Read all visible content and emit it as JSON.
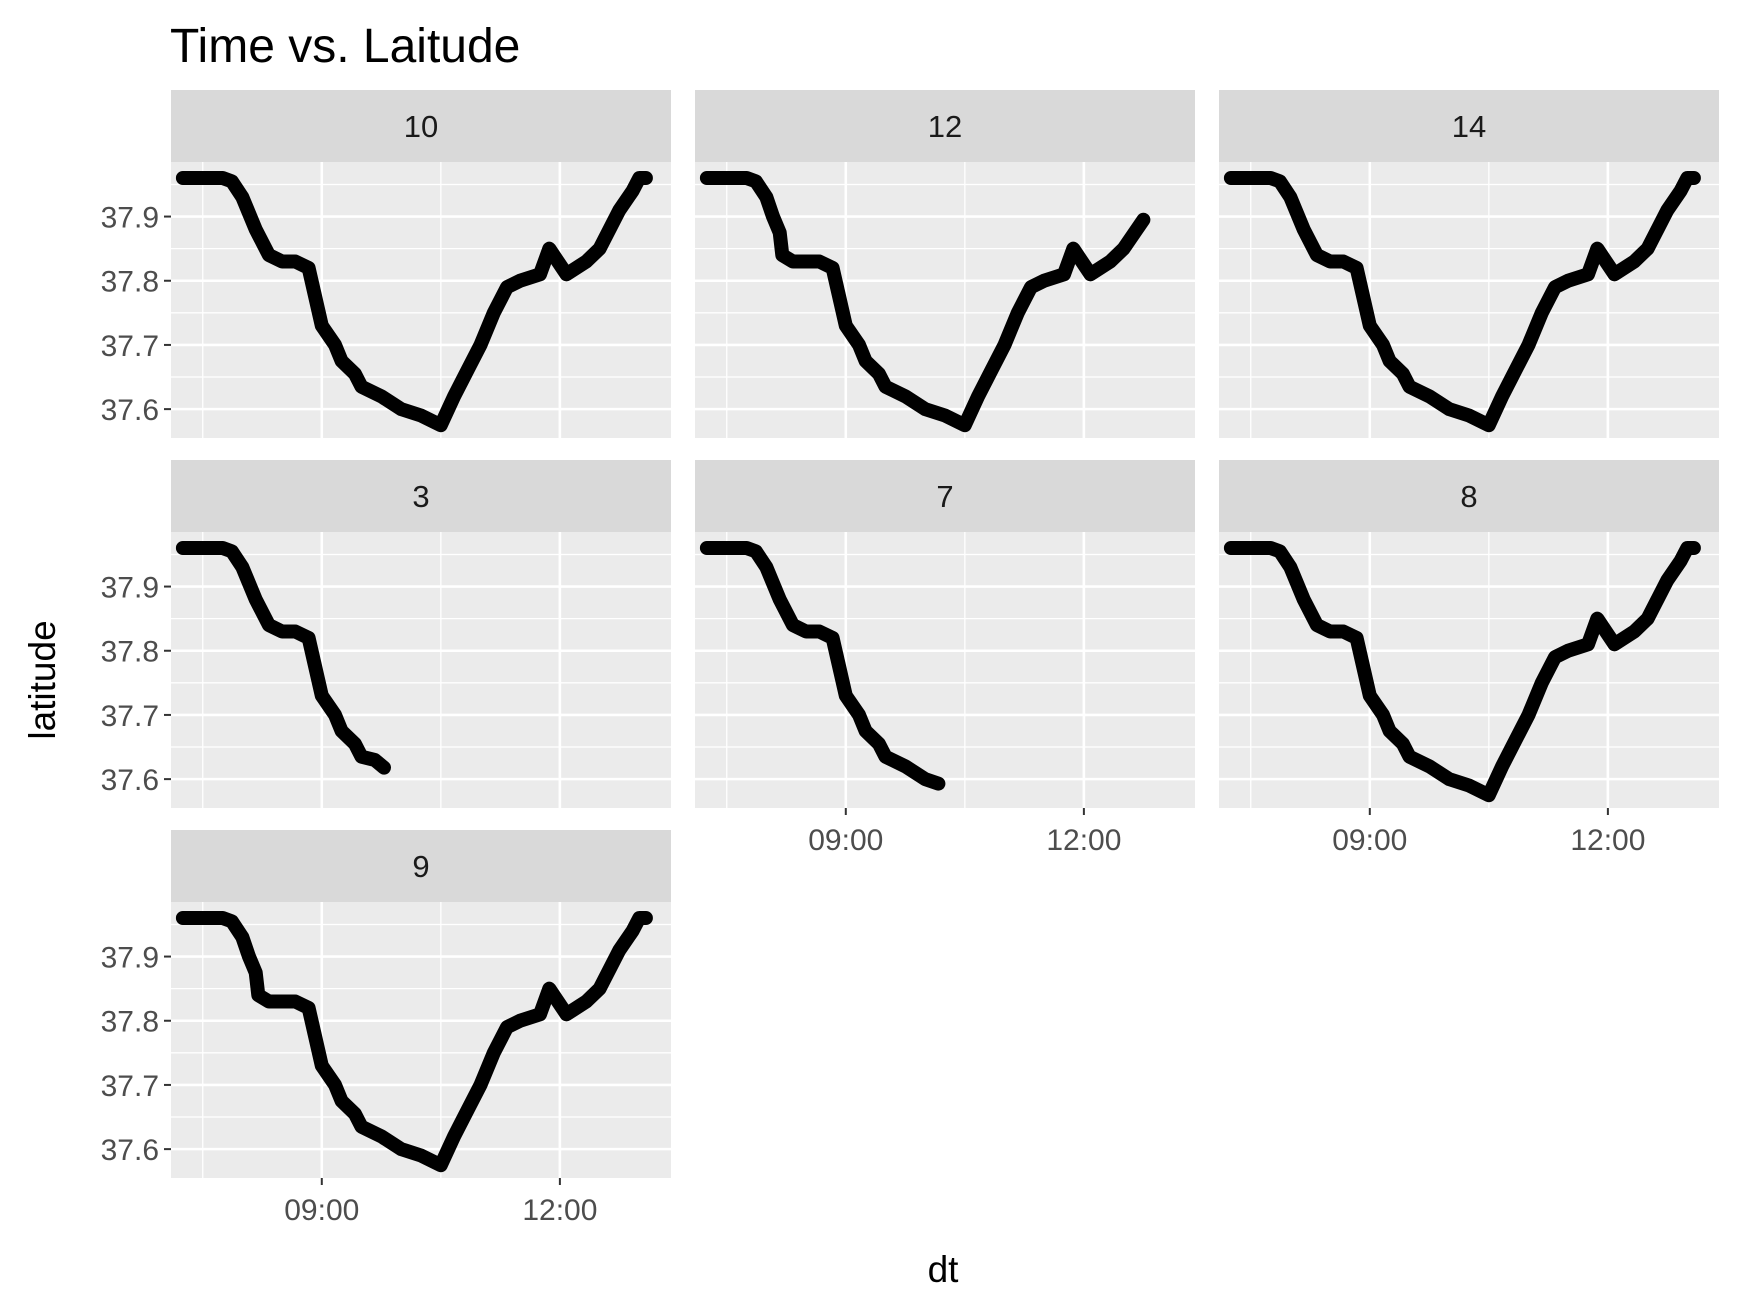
{
  "chart_data": {
    "type": "line",
    "title": "Time vs. Laitude",
    "xlabel": "dt",
    "ylabel": "latitude",
    "x_unit": "time of day (HH:MM)",
    "xlim": [
      "07:06",
      "13:24"
    ],
    "ylim": [
      37.555,
      37.985
    ],
    "x_ticks": [
      "09:00",
      "12:00"
    ],
    "y_ticks": [
      "37.6",
      "37.7",
      "37.8",
      "37.9"
    ],
    "grid": true,
    "line_color": "#000000",
    "panel_background": "#ebebeb",
    "strip_background": "#d9d9d9",
    "grid_color": "#ffffff",
    "facets": [
      {
        "label": "10",
        "series": [
          {
            "x": "07:15",
            "y": 37.96
          },
          {
            "x": "07:30",
            "y": 37.96
          },
          {
            "x": "07:45",
            "y": 37.96
          },
          {
            "x": "07:52",
            "y": 37.955
          },
          {
            "x": "08:00",
            "y": 37.93
          },
          {
            "x": "08:10",
            "y": 37.88
          },
          {
            "x": "08:20",
            "y": 37.84
          },
          {
            "x": "08:30",
            "y": 37.83
          },
          {
            "x": "08:40",
            "y": 37.83
          },
          {
            "x": "08:50",
            "y": 37.82
          },
          {
            "x": "09:00",
            "y": 37.73
          },
          {
            "x": "09:10",
            "y": 37.7
          },
          {
            "x": "09:15",
            "y": 37.675
          },
          {
            "x": "09:25",
            "y": 37.655
          },
          {
            "x": "09:30",
            "y": 37.635
          },
          {
            "x": "09:45",
            "y": 37.62
          },
          {
            "x": "10:00",
            "y": 37.6
          },
          {
            "x": "10:15",
            "y": 37.59
          },
          {
            "x": "10:25",
            "y": 37.58
          },
          {
            "x": "10:30",
            "y": 37.575
          },
          {
            "x": "10:40",
            "y": 37.62
          },
          {
            "x": "10:50",
            "y": 37.66
          },
          {
            "x": "11:00",
            "y": 37.7
          },
          {
            "x": "11:10",
            "y": 37.75
          },
          {
            "x": "11:20",
            "y": 37.79
          },
          {
            "x": "11:30",
            "y": 37.8
          },
          {
            "x": "11:45",
            "y": 37.81
          },
          {
            "x": "11:52",
            "y": 37.85
          },
          {
            "x": "12:05",
            "y": 37.81
          },
          {
            "x": "12:20",
            "y": 37.83
          },
          {
            "x": "12:30",
            "y": 37.85
          },
          {
            "x": "12:45",
            "y": 37.91
          },
          {
            "x": "12:55",
            "y": 37.94
          },
          {
            "x": "13:00",
            "y": 37.96
          },
          {
            "x": "13:05",
            "y": 37.96
          }
        ]
      },
      {
        "label": "12",
        "series": [
          {
            "x": "07:15",
            "y": 37.96
          },
          {
            "x": "07:30",
            "y": 37.96
          },
          {
            "x": "07:45",
            "y": 37.96
          },
          {
            "x": "07:52",
            "y": 37.955
          },
          {
            "x": "08:00",
            "y": 37.93
          },
          {
            "x": "08:05",
            "y": 37.9
          },
          {
            "x": "08:10",
            "y": 37.875
          },
          {
            "x": "08:12",
            "y": 37.84
          },
          {
            "x": "08:20",
            "y": 37.83
          },
          {
            "x": "08:30",
            "y": 37.83
          },
          {
            "x": "08:40",
            "y": 37.83
          },
          {
            "x": "08:50",
            "y": 37.82
          },
          {
            "x": "09:00",
            "y": 37.73
          },
          {
            "x": "09:10",
            "y": 37.7
          },
          {
            "x": "09:15",
            "y": 37.675
          },
          {
            "x": "09:25",
            "y": 37.655
          },
          {
            "x": "09:30",
            "y": 37.635
          },
          {
            "x": "09:45",
            "y": 37.62
          },
          {
            "x": "10:00",
            "y": 37.6
          },
          {
            "x": "10:15",
            "y": 37.59
          },
          {
            "x": "10:25",
            "y": 37.58
          },
          {
            "x": "10:30",
            "y": 37.575
          },
          {
            "x": "10:40",
            "y": 37.62
          },
          {
            "x": "10:50",
            "y": 37.66
          },
          {
            "x": "11:00",
            "y": 37.7
          },
          {
            "x": "11:10",
            "y": 37.75
          },
          {
            "x": "11:20",
            "y": 37.79
          },
          {
            "x": "11:30",
            "y": 37.8
          },
          {
            "x": "11:45",
            "y": 37.81
          },
          {
            "x": "11:52",
            "y": 37.85
          },
          {
            "x": "12:05",
            "y": 37.81
          },
          {
            "x": "12:20",
            "y": 37.83
          },
          {
            "x": "12:30",
            "y": 37.85
          },
          {
            "x": "12:45",
            "y": 37.895
          }
        ]
      },
      {
        "label": "14",
        "series": [
          {
            "x": "07:15",
            "y": 37.96
          },
          {
            "x": "07:30",
            "y": 37.96
          },
          {
            "x": "07:45",
            "y": 37.96
          },
          {
            "x": "07:52",
            "y": 37.955
          },
          {
            "x": "08:00",
            "y": 37.93
          },
          {
            "x": "08:10",
            "y": 37.88
          },
          {
            "x": "08:20",
            "y": 37.84
          },
          {
            "x": "08:30",
            "y": 37.83
          },
          {
            "x": "08:40",
            "y": 37.83
          },
          {
            "x": "08:50",
            "y": 37.82
          },
          {
            "x": "09:00",
            "y": 37.73
          },
          {
            "x": "09:10",
            "y": 37.7
          },
          {
            "x": "09:15",
            "y": 37.675
          },
          {
            "x": "09:25",
            "y": 37.655
          },
          {
            "x": "09:30",
            "y": 37.635
          },
          {
            "x": "09:45",
            "y": 37.62
          },
          {
            "x": "10:00",
            "y": 37.6
          },
          {
            "x": "10:15",
            "y": 37.59
          },
          {
            "x": "10:25",
            "y": 37.58
          },
          {
            "x": "10:30",
            "y": 37.575
          },
          {
            "x": "10:40",
            "y": 37.62
          },
          {
            "x": "10:50",
            "y": 37.66
          },
          {
            "x": "11:00",
            "y": 37.7
          },
          {
            "x": "11:10",
            "y": 37.75
          },
          {
            "x": "11:20",
            "y": 37.79
          },
          {
            "x": "11:30",
            "y": 37.8
          },
          {
            "x": "11:45",
            "y": 37.81
          },
          {
            "x": "11:52",
            "y": 37.85
          },
          {
            "x": "12:05",
            "y": 37.81
          },
          {
            "x": "12:20",
            "y": 37.83
          },
          {
            "x": "12:30",
            "y": 37.85
          },
          {
            "x": "12:45",
            "y": 37.91
          },
          {
            "x": "12:55",
            "y": 37.94
          },
          {
            "x": "13:00",
            "y": 37.96
          },
          {
            "x": "13:05",
            "y": 37.96
          }
        ]
      },
      {
        "label": "3",
        "series": [
          {
            "x": "07:15",
            "y": 37.96
          },
          {
            "x": "07:30",
            "y": 37.96
          },
          {
            "x": "07:45",
            "y": 37.96
          },
          {
            "x": "07:52",
            "y": 37.955
          },
          {
            "x": "08:00",
            "y": 37.93
          },
          {
            "x": "08:10",
            "y": 37.88
          },
          {
            "x": "08:20",
            "y": 37.84
          },
          {
            "x": "08:30",
            "y": 37.83
          },
          {
            "x": "08:40",
            "y": 37.83
          },
          {
            "x": "08:50",
            "y": 37.82
          },
          {
            "x": "09:00",
            "y": 37.73
          },
          {
            "x": "09:10",
            "y": 37.7
          },
          {
            "x": "09:15",
            "y": 37.675
          },
          {
            "x": "09:25",
            "y": 37.655
          },
          {
            "x": "09:30",
            "y": 37.635
          },
          {
            "x": "09:40",
            "y": 37.63
          },
          {
            "x": "09:47",
            "y": 37.618
          }
        ]
      },
      {
        "label": "7",
        "series": [
          {
            "x": "07:15",
            "y": 37.96
          },
          {
            "x": "07:30",
            "y": 37.96
          },
          {
            "x": "07:45",
            "y": 37.96
          },
          {
            "x": "07:52",
            "y": 37.955
          },
          {
            "x": "08:00",
            "y": 37.93
          },
          {
            "x": "08:10",
            "y": 37.88
          },
          {
            "x": "08:20",
            "y": 37.84
          },
          {
            "x": "08:30",
            "y": 37.83
          },
          {
            "x": "08:40",
            "y": 37.83
          },
          {
            "x": "08:50",
            "y": 37.82
          },
          {
            "x": "09:00",
            "y": 37.73
          },
          {
            "x": "09:10",
            "y": 37.7
          },
          {
            "x": "09:15",
            "y": 37.675
          },
          {
            "x": "09:25",
            "y": 37.655
          },
          {
            "x": "09:30",
            "y": 37.635
          },
          {
            "x": "09:45",
            "y": 37.62
          },
          {
            "x": "10:00",
            "y": 37.6
          },
          {
            "x": "10:10",
            "y": 37.593
          }
        ]
      },
      {
        "label": "8",
        "series": [
          {
            "x": "07:15",
            "y": 37.96
          },
          {
            "x": "07:30",
            "y": 37.96
          },
          {
            "x": "07:45",
            "y": 37.96
          },
          {
            "x": "07:52",
            "y": 37.955
          },
          {
            "x": "08:00",
            "y": 37.93
          },
          {
            "x": "08:10",
            "y": 37.88
          },
          {
            "x": "08:20",
            "y": 37.84
          },
          {
            "x": "08:30",
            "y": 37.83
          },
          {
            "x": "08:40",
            "y": 37.83
          },
          {
            "x": "08:50",
            "y": 37.82
          },
          {
            "x": "09:00",
            "y": 37.73
          },
          {
            "x": "09:10",
            "y": 37.7
          },
          {
            "x": "09:15",
            "y": 37.675
          },
          {
            "x": "09:25",
            "y": 37.655
          },
          {
            "x": "09:30",
            "y": 37.635
          },
          {
            "x": "09:45",
            "y": 37.62
          },
          {
            "x": "10:00",
            "y": 37.6
          },
          {
            "x": "10:15",
            "y": 37.59
          },
          {
            "x": "10:25",
            "y": 37.58
          },
          {
            "x": "10:30",
            "y": 37.575
          },
          {
            "x": "10:40",
            "y": 37.62
          },
          {
            "x": "10:50",
            "y": 37.66
          },
          {
            "x": "11:00",
            "y": 37.7
          },
          {
            "x": "11:10",
            "y": 37.75
          },
          {
            "x": "11:20",
            "y": 37.79
          },
          {
            "x": "11:30",
            "y": 37.8
          },
          {
            "x": "11:45",
            "y": 37.81
          },
          {
            "x": "11:52",
            "y": 37.85
          },
          {
            "x": "12:05",
            "y": 37.81
          },
          {
            "x": "12:20",
            "y": 37.83
          },
          {
            "x": "12:30",
            "y": 37.85
          },
          {
            "x": "12:45",
            "y": 37.91
          },
          {
            "x": "12:55",
            "y": 37.94
          },
          {
            "x": "13:00",
            "y": 37.96
          },
          {
            "x": "13:05",
            "y": 37.96
          }
        ]
      },
      {
        "label": "9",
        "series": [
          {
            "x": "07:15",
            "y": 37.96
          },
          {
            "x": "07:30",
            "y": 37.96
          },
          {
            "x": "07:45",
            "y": 37.96
          },
          {
            "x": "07:52",
            "y": 37.955
          },
          {
            "x": "08:00",
            "y": 37.93
          },
          {
            "x": "08:05",
            "y": 37.9
          },
          {
            "x": "08:10",
            "y": 37.875
          },
          {
            "x": "08:12",
            "y": 37.84
          },
          {
            "x": "08:20",
            "y": 37.83
          },
          {
            "x": "08:30",
            "y": 37.83
          },
          {
            "x": "08:40",
            "y": 37.83
          },
          {
            "x": "08:50",
            "y": 37.82
          },
          {
            "x": "09:00",
            "y": 37.73
          },
          {
            "x": "09:10",
            "y": 37.7
          },
          {
            "x": "09:15",
            "y": 37.675
          },
          {
            "x": "09:25",
            "y": 37.655
          },
          {
            "x": "09:30",
            "y": 37.635
          },
          {
            "x": "09:45",
            "y": 37.62
          },
          {
            "x": "10:00",
            "y": 37.6
          },
          {
            "x": "10:15",
            "y": 37.59
          },
          {
            "x": "10:25",
            "y": 37.58
          },
          {
            "x": "10:30",
            "y": 37.575
          },
          {
            "x": "10:40",
            "y": 37.62
          },
          {
            "x": "10:50",
            "y": 37.66
          },
          {
            "x": "11:00",
            "y": 37.7
          },
          {
            "x": "11:10",
            "y": 37.75
          },
          {
            "x": "11:20",
            "y": 37.79
          },
          {
            "x": "11:30",
            "y": 37.8
          },
          {
            "x": "11:45",
            "y": 37.81
          },
          {
            "x": "11:52",
            "y": 37.85
          },
          {
            "x": "12:05",
            "y": 37.81
          },
          {
            "x": "12:20",
            "y": 37.83
          },
          {
            "x": "12:30",
            "y": 37.85
          },
          {
            "x": "12:45",
            "y": 37.91
          },
          {
            "x": "12:55",
            "y": 37.94
          },
          {
            "x": "13:00",
            "y": 37.96
          },
          {
            "x": "13:05",
            "y": 37.96
          }
        ]
      }
    ]
  }
}
